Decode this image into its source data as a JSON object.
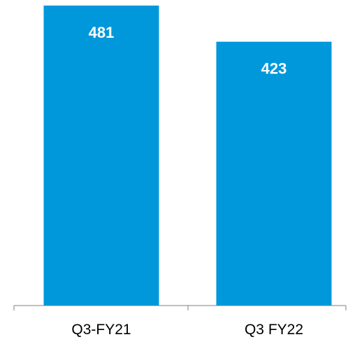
{
  "chart_data": {
    "type": "bar",
    "title": "",
    "xlabel": "",
    "ylabel": "",
    "categories": [
      "Q3-FY21",
      "Q3 FY22"
    ],
    "values": [
      481,
      423
    ],
    "data_labels": [
      "481",
      "423"
    ],
    "ylim": [
      0,
      500
    ],
    "grid": false,
    "legend": "none",
    "colors": {
      "bar": "#0098DA",
      "data_label": "#FFFFFF",
      "axis": "#808080",
      "tick_label": "#000000"
    }
  }
}
